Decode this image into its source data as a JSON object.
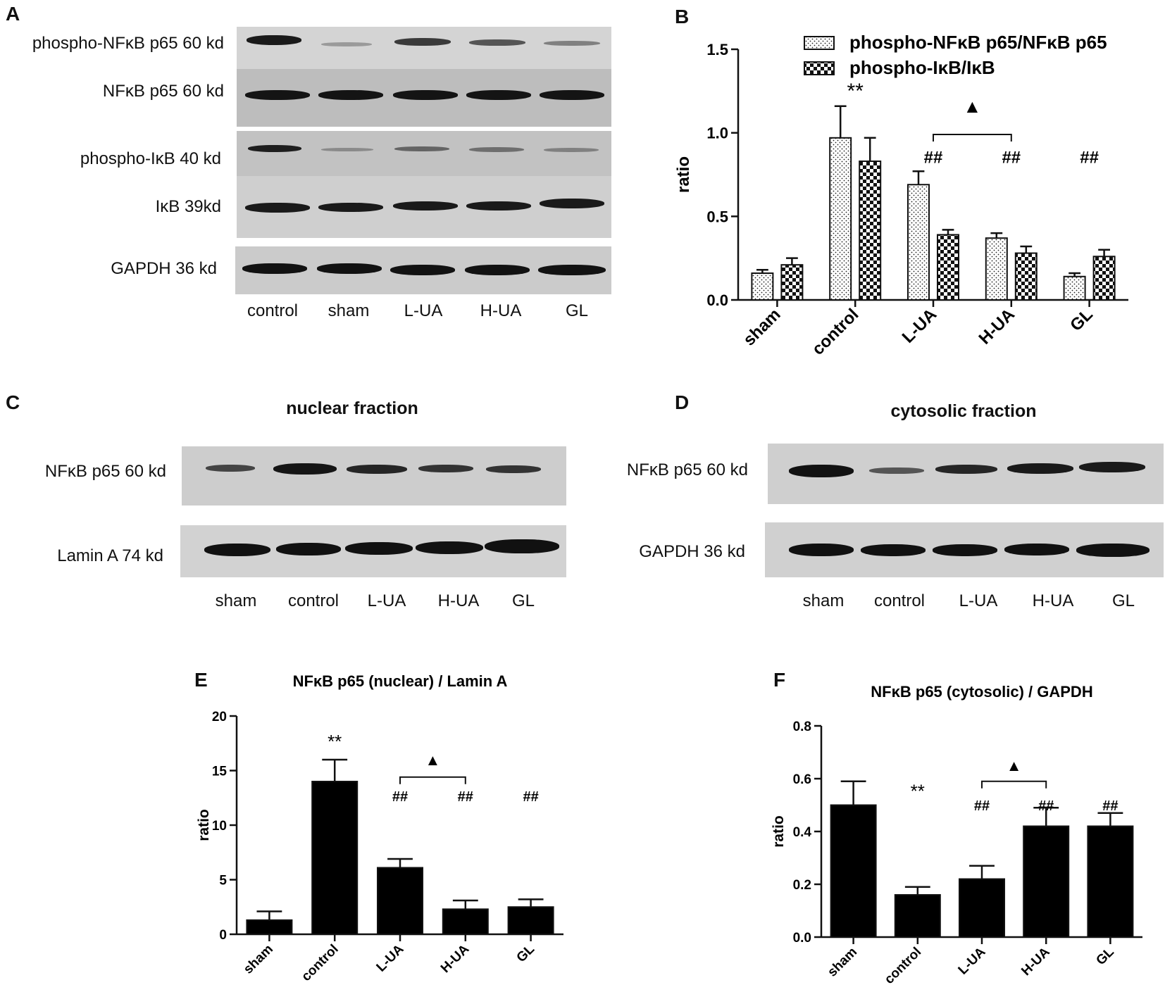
{
  "panel_letters": {
    "a": "A",
    "b": "B",
    "c": "C",
    "d": "D",
    "e": "E",
    "f": "F"
  },
  "blot_a": {
    "labels": [
      "phospho-NFκB p65 60 kd",
      "NFκB p65 60 kd",
      "phospho-IκB 40 kd",
      "IκB  39kd",
      "GAPDH  36 kd"
    ],
    "lanes": [
      "control",
      "sham",
      "L-UA",
      "H-UA",
      "GL"
    ]
  },
  "blot_c": {
    "title": "nuclear fraction",
    "labels": [
      "NFκB p65 60 kd",
      "Lamin A  74 kd"
    ],
    "lanes": [
      "sham",
      "control",
      "L-UA",
      "H-UA",
      "GL"
    ]
  },
  "blot_d": {
    "title": "cytosolic fraction",
    "labels": [
      "NFκB p65 60 kd",
      "GAPDH  36 kd"
    ],
    "lanes": [
      "sham",
      "control",
      "L-UA",
      "H-UA",
      "GL"
    ]
  },
  "chart_data": [
    {
      "panel": "B",
      "type": "bar",
      "title": "",
      "xlabel": "",
      "ylabel": "ratio",
      "ylim": [
        0,
        1.5
      ],
      "yticks": [
        "0.0",
        "0.5",
        "1.0",
        "1.5"
      ],
      "categories": [
        "sham",
        "control",
        "L-UA",
        "H-UA",
        "GL"
      ],
      "series": [
        {
          "name": "phospho-NFκB p65/NFκB p65",
          "pattern": "dots",
          "values": [
            0.16,
            0.97,
            0.69,
            0.37,
            0.14
          ],
          "errors": [
            0.02,
            0.19,
            0.08,
            0.03,
            0.02
          ]
        },
        {
          "name": "phospho-IκB/IκB",
          "pattern": "checker",
          "values": [
            0.21,
            0.83,
            0.39,
            0.28,
            0.26
          ],
          "errors": [
            0.04,
            0.14,
            0.03,
            0.04,
            0.04
          ]
        }
      ],
      "legend": "top-right",
      "annotations": [
        {
          "text": "**",
          "category": 1,
          "y": 1.21
        },
        {
          "text": "##",
          "category": 2,
          "y": 0.82
        },
        {
          "text": "##",
          "category": 3,
          "y": 0.82
        },
        {
          "text": "##",
          "category": 4,
          "y": 0.82
        },
        {
          "text": "▲",
          "category": 2.5,
          "y": 1.12
        }
      ],
      "bracket": {
        "from": 2,
        "to": 3,
        "y": 0.99
      }
    },
    {
      "panel": "E",
      "type": "bar",
      "title": "NFκB p65 (nuclear) / Lamin A",
      "xlabel": "",
      "ylabel": "ratio",
      "ylim": [
        0,
        20
      ],
      "yticks": [
        "0",
        "5",
        "10",
        "15",
        "20"
      ],
      "categories": [
        "sham",
        "control",
        "L-UA",
        "H-UA",
        "GL"
      ],
      "values": [
        1.3,
        14.0,
        6.1,
        2.3,
        2.5
      ],
      "errors": [
        0.8,
        2.0,
        0.8,
        0.8,
        0.7
      ],
      "annotations": [
        {
          "text": "**",
          "category": 1,
          "y": 17.1
        },
        {
          "text": "##",
          "category": 2,
          "y": 12.2
        },
        {
          "text": "##",
          "category": 3,
          "y": 12.2
        },
        {
          "text": "##",
          "category": 4,
          "y": 12.2
        },
        {
          "text": "▲",
          "category": 2.5,
          "y": 15.5
        }
      ],
      "bracket": {
        "from": 2,
        "to": 3,
        "y": 14.4
      }
    },
    {
      "panel": "F",
      "type": "bar",
      "title": "NFκB p65 (cytosolic) / GAPDH",
      "xlabel": "",
      "ylabel": "ratio",
      "ylim": [
        0,
        0.8
      ],
      "yticks": [
        "0.0",
        "0.2",
        "0.4",
        "0.6",
        "0.8"
      ],
      "categories": [
        "sham",
        "control",
        "L-UA",
        "H-UA",
        "GL"
      ],
      "values": [
        0.5,
        0.16,
        0.22,
        0.42,
        0.42
      ],
      "errors": [
        0.09,
        0.03,
        0.05,
        0.07,
        0.05
      ],
      "annotations": [
        {
          "text": "**",
          "category": 1,
          "y": 0.53
        },
        {
          "text": "##",
          "category": 2,
          "y": 0.48
        },
        {
          "text": "##",
          "category": 3,
          "y": 0.48
        },
        {
          "text": "##",
          "category": 4,
          "y": 0.48
        },
        {
          "text": "▲",
          "category": 2.5,
          "y": 0.63
        }
      ],
      "bracket": {
        "from": 2,
        "to": 3,
        "y": 0.59
      }
    }
  ]
}
